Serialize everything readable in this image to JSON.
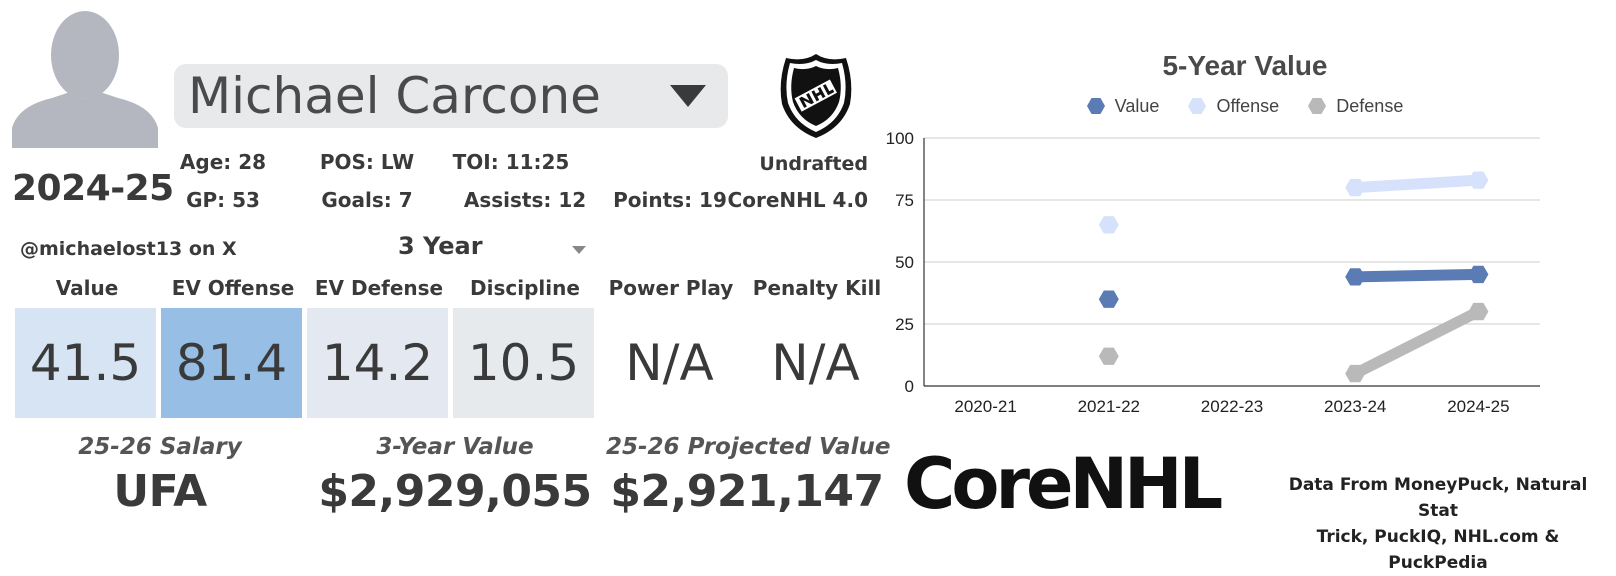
{
  "player": {
    "name": "Michael Carcone",
    "season": "2024-25",
    "handle": "@michaelost13 on X"
  },
  "stats": {
    "age": "Age: 28",
    "pos": "POS: LW",
    "toi": "TOI: 11:25",
    "draft": "Undrafted",
    "gp": "GP: 53",
    "goals": "Goals: 7",
    "assists": "Assists: 12",
    "points": "Points: 19",
    "model": "CoreNHL 4.0"
  },
  "period": {
    "selected": "3 Year"
  },
  "metrics": [
    {
      "label": "Value",
      "value": "41.5",
      "color": "#d6e4f3"
    },
    {
      "label": "EV Offense",
      "value": "81.4",
      "color": "#97bfe6"
    },
    {
      "label": "EV Defense",
      "value": "14.2",
      "color": "#e4e8f0"
    },
    {
      "label": "Discipline",
      "value": "10.5",
      "color": "#e6eaed"
    },
    {
      "label": "Power Play",
      "value": "N/A",
      "color": "#ffffff"
    },
    {
      "label": "Penalty Kill",
      "value": "N/A",
      "color": "#ffffff"
    }
  ],
  "contract": {
    "salary_label": "25-26 Salary",
    "salary_value": "UFA",
    "three_year_label": "3-Year Value",
    "three_year_value": "$2,929,055",
    "projected_label": "25-26 Projected Value",
    "projected_value": "$2,921,147"
  },
  "brand": {
    "logo_text": "CoreNHL",
    "credit_line1": "Data From MoneyPuck, Natural Stat",
    "credit_line2": "Trick, PuckIQ, NHL.com & PuckPedia"
  },
  "icons": {
    "avatar": "avatar-silhouette-icon",
    "dropdown": "chevron-down-icon",
    "league": "nhl-shield-logo"
  },
  "chart_data": {
    "type": "line",
    "title": "5-Year Value",
    "categories": [
      "2020-21",
      "2021-22",
      "2022-23",
      "2023-24",
      "2024-25"
    ],
    "ylim": [
      0,
      100
    ],
    "yticks": [
      "0",
      "25",
      "50",
      "75",
      "100"
    ],
    "grid": true,
    "legend": "top",
    "series": [
      {
        "name": "Value",
        "color": "#5b7bb4",
        "values": [
          null,
          35,
          null,
          44,
          45
        ]
      },
      {
        "name": "Offense",
        "color": "#d6e2fb",
        "values": [
          null,
          65,
          null,
          80,
          83
        ]
      },
      {
        "name": "Defense",
        "color": "#b9b9b9",
        "values": [
          null,
          12,
          null,
          5,
          30
        ]
      }
    ]
  }
}
